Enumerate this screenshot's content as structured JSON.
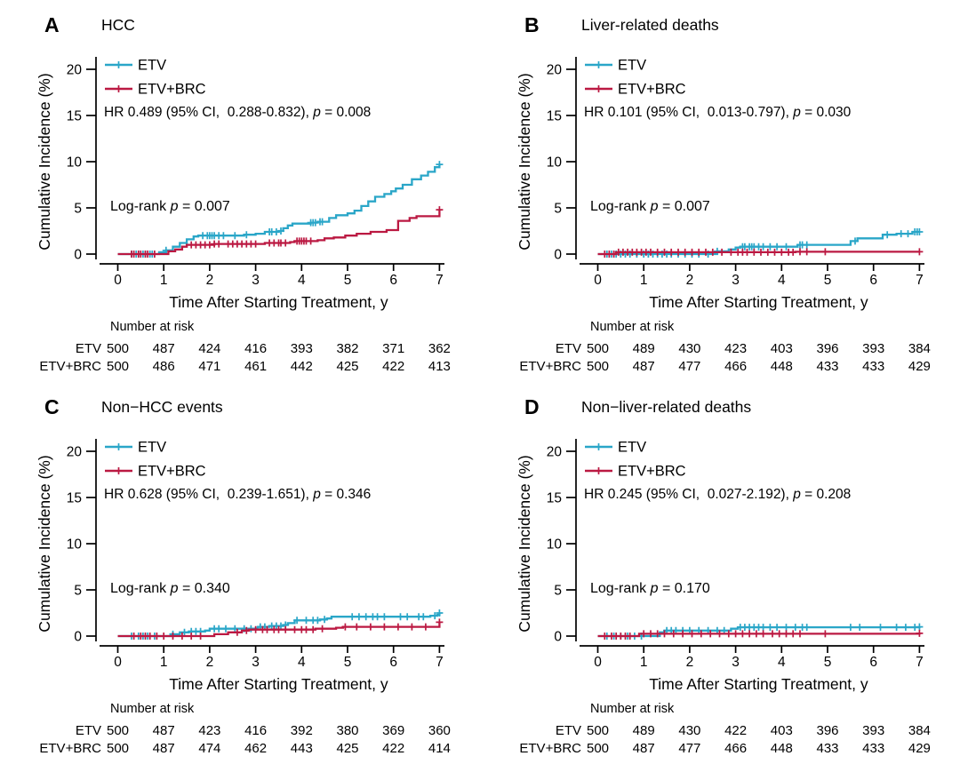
{
  "chart_data": {
    "type": "line",
    "variant": "cumulative-incidence-step-curves",
    "xlabel": "Time After Starting Treatment, y",
    "ylabel": "Cumulative Incidence (%)",
    "xlim": [
      0,
      7
    ],
    "ylim": [
      0,
      20
    ],
    "xticks": [
      0,
      1,
      2,
      3,
      4,
      5,
      6,
      7
    ],
    "yticks": [
      0,
      5,
      10,
      15,
      20
    ],
    "grid": false,
    "legend_position": "top-left-inside",
    "risk_header": "Number at risk",
    "series_labels": {
      "etv": "ETV",
      "brc": "ETV+BRC"
    },
    "colors": {
      "etv": "#2aa6c8",
      "brc": "#bb1942",
      "axis": "#000000"
    },
    "panels": [
      {
        "letter": "A",
        "title": "HCC",
        "hr_pre": "HR 0.489 (95% CI,  0.288-0.832), ",
        "p_char": "p",
        "hr_post": " = 0.008",
        "logrank_pre": "Log-rank ",
        "logrank_post": " = 0.007",
        "risk_etv": [
          500,
          487,
          424,
          416,
          393,
          382,
          371,
          362
        ],
        "risk_brc": [
          500,
          486,
          471,
          461,
          442,
          425,
          422,
          413
        ],
        "etv_steps": [
          [
            0,
            0
          ],
          [
            0.8,
            0
          ],
          [
            0.9,
            0.2
          ],
          [
            1.05,
            0.4
          ],
          [
            1.2,
            0.8
          ],
          [
            1.35,
            1.2
          ],
          [
            1.5,
            1.6
          ],
          [
            1.65,
            1.9
          ],
          [
            1.75,
            2.0
          ],
          [
            2.7,
            2.0
          ],
          [
            2.75,
            2.1
          ],
          [
            3.0,
            2.2
          ],
          [
            3.2,
            2.4
          ],
          [
            3.5,
            2.5
          ],
          [
            3.6,
            2.8
          ],
          [
            3.7,
            3.1
          ],
          [
            3.8,
            3.3
          ],
          [
            4.2,
            3.4
          ],
          [
            4.35,
            3.5
          ],
          [
            4.6,
            3.9
          ],
          [
            4.75,
            4.2
          ],
          [
            5.0,
            4.4
          ],
          [
            5.15,
            4.7
          ],
          [
            5.3,
            5.2
          ],
          [
            5.45,
            5.7
          ],
          [
            5.6,
            6.2
          ],
          [
            5.8,
            6.5
          ],
          [
            5.95,
            6.8
          ],
          [
            6.05,
            7.1
          ],
          [
            6.2,
            7.5
          ],
          [
            6.4,
            8.1
          ],
          [
            6.6,
            8.5
          ],
          [
            6.75,
            8.9
          ],
          [
            6.9,
            9.4
          ],
          [
            7.0,
            9.7
          ]
        ],
        "brc_steps": [
          [
            0,
            0
          ],
          [
            1.0,
            0
          ],
          [
            1.1,
            0.3
          ],
          [
            1.25,
            0.5
          ],
          [
            1.4,
            0.8
          ],
          [
            1.5,
            1.0
          ],
          [
            2.05,
            1.0
          ],
          [
            2.1,
            1.1
          ],
          [
            3.1,
            1.1
          ],
          [
            3.2,
            1.2
          ],
          [
            3.75,
            1.3
          ],
          [
            3.85,
            1.4
          ],
          [
            4.35,
            1.5
          ],
          [
            4.5,
            1.7
          ],
          [
            4.7,
            1.8
          ],
          [
            4.95,
            2.0
          ],
          [
            5.2,
            2.2
          ],
          [
            5.5,
            2.4
          ],
          [
            5.85,
            2.6
          ],
          [
            6.1,
            3.6
          ],
          [
            6.35,
            3.9
          ],
          [
            6.5,
            4.1
          ],
          [
            6.95,
            4.1
          ],
          [
            7.0,
            4.8
          ]
        ],
        "etv_censors": [
          0.3,
          0.4,
          0.45,
          0.55,
          0.6,
          0.7,
          0.75,
          1.05,
          1.85,
          1.95,
          2.0,
          2.05,
          2.1,
          2.2,
          2.3,
          2.55,
          2.8,
          3.3,
          3.35,
          3.45,
          3.55,
          4.2,
          4.25,
          4.3,
          4.4,
          4.45,
          7.0
        ],
        "brc_censors": [
          0.3,
          0.35,
          0.45,
          0.5,
          0.6,
          0.65,
          0.8,
          1.6,
          1.7,
          1.8,
          1.9,
          2.0,
          2.1,
          2.2,
          2.4,
          2.5,
          2.6,
          2.7,
          2.8,
          2.9,
          3.0,
          3.3,
          3.4,
          3.5,
          3.55,
          3.65,
          3.9,
          3.95,
          4.0,
          4.05,
          4.1,
          4.2,
          7.0
        ]
      },
      {
        "letter": "B",
        "title": "Liver-related deaths",
        "hr_pre": "HR 0.101 (95% CI,  0.013-0.797), ",
        "p_char": "p",
        "hr_post": " = 0.030",
        "logrank_pre": "Log-rank ",
        "logrank_post": " = 0.007",
        "risk_etv": [
          500,
          489,
          430,
          423,
          403,
          396,
          393,
          384
        ],
        "risk_brc": [
          500,
          487,
          477,
          466,
          448,
          433,
          433,
          429
        ],
        "etv_steps": [
          [
            0,
            0
          ],
          [
            2.5,
            0
          ],
          [
            2.6,
            0.3
          ],
          [
            2.85,
            0.5
          ],
          [
            3.0,
            0.7
          ],
          [
            3.1,
            0.8
          ],
          [
            4.25,
            0.8
          ],
          [
            4.35,
            1.0
          ],
          [
            5.4,
            1.0
          ],
          [
            5.5,
            1.4
          ],
          [
            5.65,
            1.7
          ],
          [
            6.1,
            1.7
          ],
          [
            6.2,
            2.1
          ],
          [
            6.5,
            2.2
          ],
          [
            6.85,
            2.4
          ],
          [
            7.0,
            2.4
          ]
        ],
        "brc_steps": [
          [
            0,
            0
          ],
          [
            0.3,
            0
          ],
          [
            0.4,
            0.2
          ],
          [
            4.2,
            0.2
          ],
          [
            4.3,
            0.25
          ],
          [
            7.0,
            0.25
          ]
        ],
        "etv_censors": [
          0.2,
          0.3,
          0.4,
          0.5,
          0.6,
          0.7,
          0.85,
          1.0,
          1.1,
          1.2,
          1.3,
          1.4,
          1.5,
          1.6,
          1.75,
          1.9,
          2.05,
          2.2,
          2.4,
          2.6,
          3.15,
          3.2,
          3.3,
          3.35,
          3.4,
          3.5,
          3.6,
          3.75,
          3.9,
          4.1,
          4.4,
          4.45,
          4.55,
          5.6,
          6.3,
          6.6,
          6.75,
          6.9,
          6.95,
          7.0
        ],
        "brc_censors": [
          0.15,
          0.25,
          0.35,
          0.45,
          0.55,
          0.65,
          0.75,
          0.85,
          0.95,
          1.05,
          1.15,
          1.3,
          1.45,
          1.6,
          1.75,
          1.9,
          2.05,
          2.2,
          2.35,
          2.5,
          2.7,
          2.9,
          3.05,
          3.15,
          3.25,
          3.4,
          3.55,
          3.7,
          3.85,
          4.0,
          4.15,
          4.25,
          4.4,
          4.55,
          4.95,
          7.0
        ]
      },
      {
        "letter": "C",
        "title": "Non−HCC events",
        "hr_pre": "HR 0.628 (95% CI,  0.239-1.651), ",
        "p_char": "p",
        "hr_post": " = 0.346",
        "logrank_pre": "Log-rank ",
        "logrank_post": " = 0.340",
        "risk_etv": [
          500,
          487,
          423,
          416,
          392,
          380,
          369,
          360
        ],
        "risk_brc": [
          500,
          487,
          474,
          462,
          443,
          425,
          422,
          414
        ],
        "etv_steps": [
          [
            0,
            0
          ],
          [
            1.05,
            0
          ],
          [
            1.15,
            0.2
          ],
          [
            1.35,
            0.4
          ],
          [
            1.55,
            0.5
          ],
          [
            1.9,
            0.6
          ],
          [
            2.0,
            0.8
          ],
          [
            2.95,
            0.8
          ],
          [
            3.05,
            1.0
          ],
          [
            3.3,
            1.1
          ],
          [
            3.6,
            1.2
          ],
          [
            3.7,
            1.4
          ],
          [
            3.85,
            1.7
          ],
          [
            4.4,
            1.8
          ],
          [
            4.55,
            1.9
          ],
          [
            4.65,
            2.1
          ],
          [
            6.7,
            2.1
          ],
          [
            6.8,
            2.2
          ],
          [
            6.95,
            2.3
          ],
          [
            7.0,
            2.5
          ]
        ],
        "brc_steps": [
          [
            0,
            0
          ],
          [
            1.95,
            0
          ],
          [
            2.1,
            0.2
          ],
          [
            2.4,
            0.4
          ],
          [
            2.7,
            0.6
          ],
          [
            2.85,
            0.7
          ],
          [
            4.2,
            0.7
          ],
          [
            4.3,
            0.8
          ],
          [
            4.75,
            0.9
          ],
          [
            4.9,
            1.0
          ],
          [
            6.85,
            1.0
          ],
          [
            7.0,
            1.5
          ]
        ],
        "etv_censors": [
          0.3,
          0.45,
          0.55,
          0.65,
          0.8,
          1.2,
          1.45,
          1.6,
          1.7,
          1.8,
          2.1,
          2.2,
          2.35,
          2.55,
          2.75,
          2.9,
          3.1,
          3.2,
          3.35,
          3.45,
          3.55,
          3.65,
          3.9,
          4.1,
          4.25,
          4.35,
          4.5,
          5.1,
          5.25,
          5.4,
          5.55,
          5.65,
          5.8,
          6.15,
          6.3,
          6.55,
          6.65,
          6.9,
          7.0
        ],
        "brc_censors": [
          0.35,
          0.5,
          0.6,
          0.7,
          0.85,
          1.0,
          1.2,
          1.4,
          1.6,
          1.8,
          2.6,
          2.8,
          3.0,
          3.15,
          3.25,
          3.4,
          3.5,
          3.65,
          3.85,
          4.0,
          4.1,
          4.25,
          4.45,
          4.95,
          5.2,
          5.5,
          5.8,
          6.1,
          6.4,
          6.7,
          7.0
        ]
      },
      {
        "letter": "D",
        "title": "Non−liver-related deaths",
        "hr_pre": "HR 0.245 (95% CI,  0.027-2.192), ",
        "p_char": "p",
        "hr_post": " = 0.208",
        "logrank_pre": "Log-rank ",
        "logrank_post": " = 0.170",
        "risk_etv": [
          500,
          489,
          430,
          422,
          403,
          396,
          393,
          384
        ],
        "risk_brc": [
          500,
          487,
          477,
          466,
          448,
          433,
          433,
          429
        ],
        "etv_steps": [
          [
            0,
            0
          ],
          [
            1.25,
            0
          ],
          [
            1.35,
            0.4
          ],
          [
            1.45,
            0.6
          ],
          [
            2.8,
            0.6
          ],
          [
            2.9,
            0.8
          ],
          [
            3.05,
            0.95
          ],
          [
            6.9,
            0.95
          ],
          [
            7.0,
            1.0
          ]
        ],
        "brc_steps": [
          [
            0,
            0
          ],
          [
            0.8,
            0
          ],
          [
            0.9,
            0.25
          ],
          [
            6.9,
            0.25
          ],
          [
            7.0,
            0.3
          ]
        ],
        "etv_censors": [
          0.2,
          0.35,
          0.5,
          0.65,
          0.8,
          0.95,
          1.5,
          1.6,
          1.7,
          1.85,
          2.0,
          2.2,
          2.4,
          2.6,
          2.75,
          3.1,
          3.2,
          3.3,
          3.4,
          3.5,
          3.6,
          3.75,
          3.9,
          4.1,
          4.3,
          4.45,
          4.55,
          5.5,
          5.7,
          6.15,
          6.5,
          6.7,
          6.9,
          7.0
        ],
        "brc_censors": [
          0.15,
          0.3,
          0.4,
          0.5,
          0.6,
          0.7,
          1.0,
          1.15,
          1.3,
          1.45,
          1.65,
          1.85,
          2.05,
          2.25,
          2.45,
          2.65,
          2.85,
          3.0,
          3.15,
          3.3,
          3.45,
          3.6,
          3.8,
          3.95,
          4.1,
          4.25,
          4.4,
          4.95,
          7.0
        ]
      }
    ]
  }
}
